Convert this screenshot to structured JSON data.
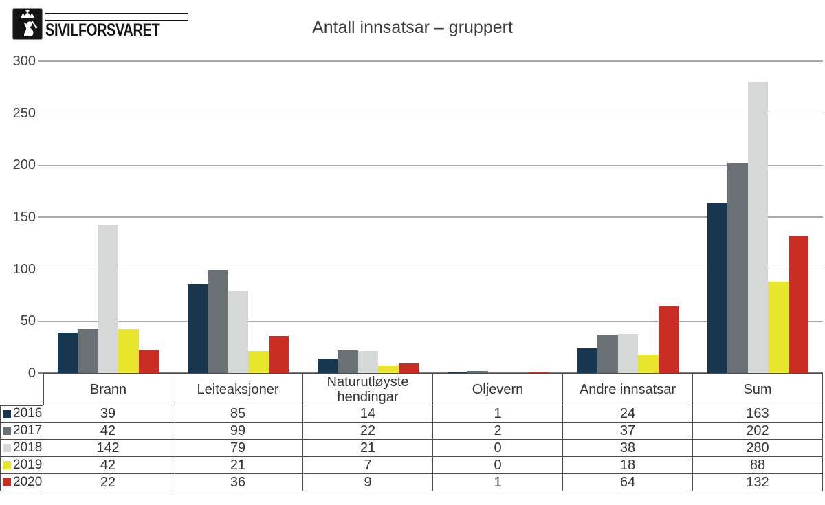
{
  "logo": {
    "name": "SIVILFORSVARET",
    "emblem_icon": "norwegian-lion-crest"
  },
  "title": "Antall innsatsar – gruppert",
  "chart_data": {
    "type": "bar",
    "title": "Antall innsatsar – gruppert",
    "categories": [
      "Brann",
      "Leiteaksjoner",
      "Naturutløyste hendingar",
      "Oljevern",
      "Andre innsatsar",
      "Sum"
    ],
    "series": [
      {
        "name": "2016",
        "color": "#17364f",
        "values": [
          39,
          85,
          14,
          1,
          24,
          163
        ]
      },
      {
        "name": "2017",
        "color": "#697175",
        "values": [
          42,
          99,
          22,
          2,
          37,
          202
        ]
      },
      {
        "name": "2018",
        "color": "#d6d8d8",
        "values": [
          142,
          79,
          21,
          0,
          38,
          280
        ]
      },
      {
        "name": "2019",
        "color": "#e7e52e",
        "values": [
          42,
          21,
          7,
          0,
          18,
          88
        ]
      },
      {
        "name": "2020",
        "color": "#c92d24",
        "values": [
          22,
          36,
          9,
          1,
          64,
          132
        ]
      }
    ],
    "ylim": [
      0,
      300
    ],
    "yticks": [
      0,
      50,
      100,
      150,
      200,
      250,
      300
    ],
    "grid": true,
    "legend_position": "table-rows-left"
  }
}
